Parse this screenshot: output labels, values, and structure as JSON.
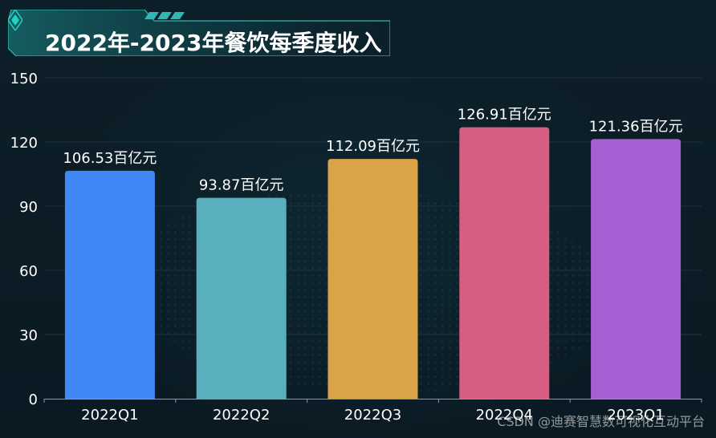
{
  "chart_data": {
    "type": "bar",
    "title": "2022年-2023年餐饮每季度收入",
    "categories": [
      "2022Q1",
      "2022Q2",
      "2022Q3",
      "2022Q4",
      "2023Q1"
    ],
    "values": [
      106.53,
      93.87,
      112.09,
      126.91,
      121.36
    ],
    "value_suffix": "百亿元",
    "data_labels": [
      "106.53百亿元",
      "93.87百亿元",
      "112.09百亿元",
      "126.91百亿元",
      "121.36百亿元"
    ],
    "colors": [
      "#4088f5",
      "#5aafbf",
      "#d9a346",
      "#d75e80",
      "#a660d4"
    ],
    "ylim": [
      0,
      150
    ],
    "yticks": [
      "0",
      "30",
      "60",
      "90",
      "120",
      "150"
    ],
    "xlabel": "",
    "ylabel": ""
  },
  "watermark": "CSDN @迪赛智慧数可视化互动平台",
  "theme": {
    "accent": "#1fd3c6",
    "axis_color": "#8a9aa3",
    "text_color": "#ffffff"
  }
}
